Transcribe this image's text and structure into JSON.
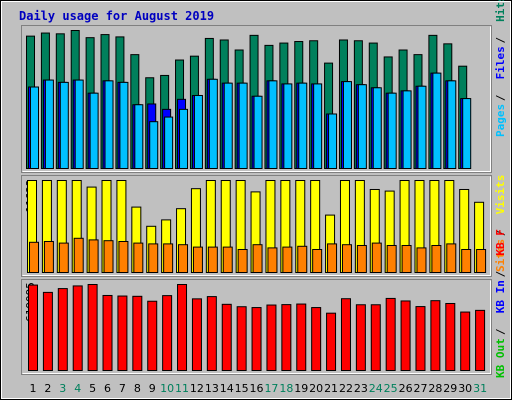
{
  "chart_data": [
    {
      "panel": "hits-files-pages",
      "type": "bar",
      "title": "Daily usage for August 2019",
      "ymax_label": "90147",
      "legend": [
        {
          "label": "Hits",
          "color": "#00805c"
        },
        {
          "label": "Files",
          "color": "#0000ff"
        },
        {
          "label": "Pages",
          "color": "#00c0ff"
        }
      ],
      "categories": [
        "1",
        "2",
        "3",
        "4",
        "5",
        "6",
        "7",
        "8",
        "9",
        "10",
        "11",
        "12",
        "13",
        "14",
        "15",
        "16",
        "17",
        "18",
        "19",
        "20",
        "21",
        "22",
        "23",
        "24",
        "25",
        "26",
        "27",
        "28",
        "29",
        "30",
        "31"
      ],
      "series": [
        {
          "name": "Hits",
          "color": "#00805c",
          "values": [
            86500,
            88500,
            88000,
            90147,
            85500,
            87500,
            86000,
            74500,
            59500,
            61000,
            71000,
            73500,
            85000,
            84000,
            77500,
            87000,
            80500,
            82000,
            83000,
            83500,
            69000,
            84000,
            83500,
            82000,
            73000,
            77500,
            74500,
            87000,
            81500,
            67000,
            null
          ]
        },
        {
          "name": "Files",
          "color": "#0000ff",
          "values": [
            53500,
            58000,
            56500,
            58000,
            49500,
            57500,
            56500,
            42000,
            42500,
            39000,
            45500,
            48000,
            58500,
            56000,
            56000,
            47500,
            57500,
            55500,
            56000,
            55500,
            36000,
            57000,
            55000,
            53000,
            49500,
            51000,
            54000,
            62500,
            57500,
            46000,
            null
          ]
        },
        {
          "name": "Pages",
          "color": "#00c0ff",
          "values": [
            53500,
            58000,
            56500,
            58000,
            49500,
            57500,
            56500,
            42000,
            31000,
            34000,
            39000,
            48000,
            58500,
            56000,
            56000,
            47500,
            57500,
            55500,
            56000,
            55500,
            36000,
            57000,
            55000,
            53000,
            49500,
            51000,
            54000,
            62500,
            57500,
            46000,
            null
          ]
        }
      ]
    },
    {
      "panel": "visits-sites",
      "type": "bar",
      "ymax_label": "11623",
      "legend": [
        {
          "label": "Visits",
          "color": "#ffff00"
        },
        {
          "label": "Sites",
          "color": "#ff8000"
        }
      ],
      "categories": [
        "1",
        "2",
        "3",
        "4",
        "5",
        "6",
        "7",
        "8",
        "9",
        "10",
        "11",
        "12",
        "13",
        "14",
        "15",
        "16",
        "17",
        "18",
        "19",
        "20",
        "21",
        "22",
        "23",
        "24",
        "25",
        "26",
        "27",
        "28",
        "29",
        "30",
        "31"
      ],
      "series": [
        {
          "name": "Visits",
          "color": "#ffff00",
          "values": [
            11623,
            11623,
            11623,
            11623,
            10800,
            11623,
            11623,
            8300,
            5900,
            6700,
            8100,
            10600,
            11623,
            11623,
            11623,
            10200,
            11623,
            11623,
            11623,
            11623,
            7300,
            11623,
            11623,
            10500,
            10300,
            11623,
            11623,
            11623,
            11623,
            10500,
            8900
          ]
        },
        {
          "name": "Sites",
          "color": "#ff8000",
          "values": [
            3900,
            4000,
            3800,
            4400,
            4200,
            4100,
            4000,
            3800,
            3700,
            3700,
            3600,
            3300,
            3300,
            3300,
            3000,
            3600,
            3200,
            3300,
            3400,
            3000,
            3700,
            3600,
            3500,
            3800,
            3500,
            3500,
            3200,
            3500,
            3700,
            3000,
            3000
          ]
        }
      ]
    },
    {
      "panel": "kbytes",
      "type": "bar",
      "ymax_label": "619095",
      "legend": [
        {
          "label": "KB F",
          "color": "#ff0000"
        },
        {
          "label": "KB In",
          "color": "#0000ff"
        },
        {
          "label": "KB Out",
          "color": "#00c000"
        }
      ],
      "categories": [
        "1",
        "2",
        "3",
        "4",
        "5",
        "6",
        "7",
        "8",
        "9",
        "10",
        "11",
        "12",
        "13",
        "14",
        "15",
        "16",
        "17",
        "18",
        "19",
        "20",
        "21",
        "22",
        "23",
        "24",
        "25",
        "26",
        "27",
        "28",
        "29",
        "30",
        "31"
      ],
      "series": [
        {
          "name": "KB F",
          "color": "#ff0000",
          "values": [
            615000,
            563000,
            590000,
            609000,
            619095,
            541000,
            537000,
            535000,
            500000,
            540000,
            619095,
            517000,
            533000,
            478000,
            461000,
            455000,
            473000,
            476000,
            480000,
            455000,
            415000,
            518000,
            475000,
            475000,
            520000,
            502000,
            462000,
            504000,
            484000,
            423000,
            435000
          ]
        }
      ]
    }
  ],
  "x_day_colors": [
    "#000000",
    "#000000",
    "#00805c",
    "#00805c",
    "#000000",
    "#000000",
    "#000000",
    "#000000",
    "#000000",
    "#00805c",
    "#00805c",
    "#000000",
    "#000000",
    "#000000",
    "#000000",
    "#000000",
    "#00805c",
    "#00805c",
    "#000000",
    "#000000",
    "#000000",
    "#000000",
    "#000000",
    "#00805c",
    "#00805c",
    "#000000",
    "#000000",
    "#000000",
    "#000000",
    "#000000",
    "#00805c"
  ]
}
